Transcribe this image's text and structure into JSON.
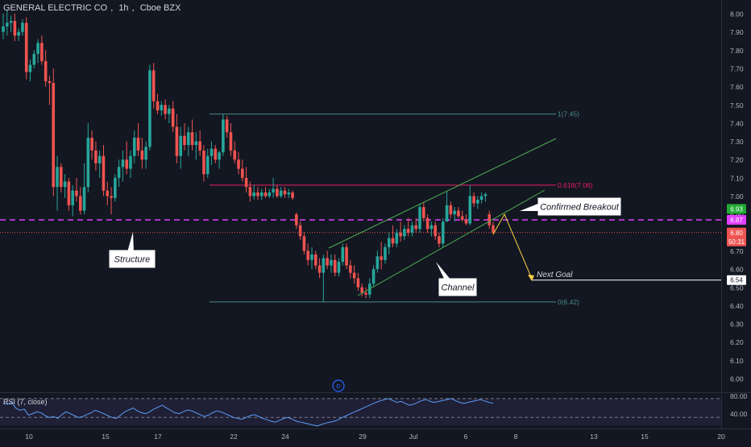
{
  "header": {
    "symbol": "GENERAL ELECTRIC CO",
    "interval": "1h",
    "exchange": "Cboe BZX"
  },
  "colors": {
    "background": "#131722",
    "up": "#26a69a",
    "down": "#ef5350",
    "channel": "#4caf50",
    "fib": "#4a8c85",
    "fib_618": "#e91e63",
    "breakout_line": "#e040fb",
    "goal_arrow": "#f5d142",
    "rsi_line": "#5b9cf6"
  },
  "price_axis": {
    "ticks": [
      "8.00",
      "7.90",
      "7.80",
      "7.70",
      "7.60",
      "7.50",
      "7.40",
      "7.30",
      "7.20",
      "7.10",
      "7.00",
      "6.90",
      "6.80",
      "6.70",
      "6.60",
      "6.50",
      "6.40",
      "6.30",
      "6.20",
      "6.10",
      "6.00"
    ],
    "badges": [
      {
        "text": "6.93",
        "color": "#22ab35"
      },
      {
        "text": "6.87",
        "color": "#e040fb"
      },
      {
        "text": "6.80",
        "color": "#ef5350"
      },
      {
        "text": "50:31",
        "color": "#ef5350"
      },
      {
        "text": "6.54",
        "color": "#ffffff"
      }
    ]
  },
  "time_axis": {
    "labels": [
      "10",
      "15",
      "17",
      "22",
      "24",
      "29",
      "Jul",
      "6",
      "8",
      "13",
      "15",
      "20"
    ]
  },
  "annotations": {
    "structure": "Structure",
    "channel": "Channel",
    "confirmed_breakout": "Confirmed Breakout",
    "next_goal": "Next Goal",
    "fib_1": "1(7.45)",
    "fib_618": "0.618(7.06)",
    "fib_0": "0(6.42)",
    "dividend_marker": "D"
  },
  "rsi": {
    "title": "RSI (7, close)",
    "ticks": [
      "80.00",
      "40.00"
    ]
  },
  "chart_data": {
    "type": "candlestick",
    "title": "GENERAL ELECTRIC CO, 1h, Cboe BZX",
    "ylim": [
      5.96,
      8.02
    ],
    "y_ticks": [
      8.0,
      7.9,
      7.8,
      7.7,
      7.6,
      7.5,
      7.4,
      7.3,
      7.2,
      7.1,
      7.0,
      6.9,
      6.8,
      6.7,
      6.6,
      6.5,
      6.4,
      6.3,
      6.2,
      6.1,
      6.0
    ],
    "candles": [
      {
        "o": 7.9,
        "h": 8.0,
        "l": 7.86,
        "c": 7.93
      },
      {
        "o": 7.93,
        "h": 8.02,
        "l": 7.88,
        "c": 7.95
      },
      {
        "o": 7.95,
        "h": 7.99,
        "l": 7.9,
        "c": 7.96
      },
      {
        "o": 7.96,
        "h": 8.0,
        "l": 7.85,
        "c": 7.88
      },
      {
        "o": 7.88,
        "h": 7.92,
        "l": 7.85,
        "c": 7.9
      },
      {
        "o": 7.9,
        "h": 7.97,
        "l": 7.88,
        "c": 7.95
      },
      {
        "o": 7.95,
        "h": 7.98,
        "l": 7.64,
        "c": 7.68
      },
      {
        "o": 7.68,
        "h": 7.75,
        "l": 7.63,
        "c": 7.72
      },
      {
        "o": 7.72,
        "h": 7.8,
        "l": 7.7,
        "c": 7.78
      },
      {
        "o": 7.78,
        "h": 7.86,
        "l": 7.73,
        "c": 7.84
      },
      {
        "o": 7.84,
        "h": 7.88,
        "l": 7.72,
        "c": 7.74
      },
      {
        "o": 7.74,
        "h": 7.8,
        "l": 7.6,
        "c": 7.63
      },
      {
        "o": 7.63,
        "h": 7.66,
        "l": 7.5,
        "c": 7.62
      },
      {
        "o": 7.62,
        "h": 7.7,
        "l": 7.0,
        "c": 7.05
      },
      {
        "o": 7.05,
        "h": 7.22,
        "l": 6.92,
        "c": 7.16
      },
      {
        "o": 7.16,
        "h": 7.18,
        "l": 7.02,
        "c": 7.05
      },
      {
        "o": 7.05,
        "h": 7.12,
        "l": 6.99,
        "c": 7.08
      },
      {
        "o": 7.08,
        "h": 7.1,
        "l": 6.92,
        "c": 6.95
      },
      {
        "o": 6.95,
        "h": 7.06,
        "l": 6.89,
        "c": 7.03
      },
      {
        "o": 7.03,
        "h": 7.1,
        "l": 6.97,
        "c": 7.0
      },
      {
        "o": 7.0,
        "h": 7.05,
        "l": 6.9,
        "c": 6.92
      },
      {
        "o": 6.92,
        "h": 7.18,
        "l": 6.9,
        "c": 7.05
      },
      {
        "o": 7.05,
        "h": 7.4,
        "l": 7.02,
        "c": 7.32
      },
      {
        "o": 7.32,
        "h": 7.36,
        "l": 7.2,
        "c": 7.25
      },
      {
        "o": 7.25,
        "h": 7.3,
        "l": 7.14,
        "c": 7.18
      },
      {
        "o": 7.18,
        "h": 7.25,
        "l": 7.1,
        "c": 7.22
      },
      {
        "o": 7.22,
        "h": 7.28,
        "l": 7.0,
        "c": 7.03
      },
      {
        "o": 7.03,
        "h": 7.08,
        "l": 6.95,
        "c": 7.0
      },
      {
        "o": 7.0,
        "h": 7.05,
        "l": 6.9,
        "c": 6.99
      },
      {
        "o": 6.99,
        "h": 7.12,
        "l": 6.97,
        "c": 7.1
      },
      {
        "o": 7.1,
        "h": 7.2,
        "l": 7.05,
        "c": 7.16
      },
      {
        "o": 7.16,
        "h": 7.25,
        "l": 7.08,
        "c": 7.2
      },
      {
        "o": 7.2,
        "h": 7.3,
        "l": 7.12,
        "c": 7.15
      },
      {
        "o": 7.15,
        "h": 7.25,
        "l": 7.1,
        "c": 7.22
      },
      {
        "o": 7.22,
        "h": 7.36,
        "l": 7.18,
        "c": 7.32
      },
      {
        "o": 7.32,
        "h": 7.4,
        "l": 7.22,
        "c": 7.25
      },
      {
        "o": 7.25,
        "h": 7.32,
        "l": 7.15,
        "c": 7.2
      },
      {
        "o": 7.2,
        "h": 7.3,
        "l": 7.15,
        "c": 7.27
      },
      {
        "o": 7.27,
        "h": 7.72,
        "l": 7.25,
        "c": 7.69
      },
      {
        "o": 7.69,
        "h": 7.73,
        "l": 7.48,
        "c": 7.52
      },
      {
        "o": 7.52,
        "h": 7.56,
        "l": 7.45,
        "c": 7.47
      },
      {
        "o": 7.47,
        "h": 7.52,
        "l": 7.44,
        "c": 7.5
      },
      {
        "o": 7.5,
        "h": 7.53,
        "l": 7.42,
        "c": 7.45
      },
      {
        "o": 7.45,
        "h": 7.5,
        "l": 7.4,
        "c": 7.48
      },
      {
        "o": 7.48,
        "h": 7.52,
        "l": 7.35,
        "c": 7.38
      },
      {
        "o": 7.38,
        "h": 7.45,
        "l": 7.18,
        "c": 7.22
      },
      {
        "o": 7.22,
        "h": 7.38,
        "l": 7.15,
        "c": 7.33
      },
      {
        "o": 7.33,
        "h": 7.4,
        "l": 7.25,
        "c": 7.28
      },
      {
        "o": 7.28,
        "h": 7.38,
        "l": 7.22,
        "c": 7.35
      },
      {
        "o": 7.35,
        "h": 7.42,
        "l": 7.25,
        "c": 7.28
      },
      {
        "o": 7.28,
        "h": 7.35,
        "l": 7.2,
        "c": 7.3
      },
      {
        "o": 7.3,
        "h": 7.36,
        "l": 7.22,
        "c": 7.25
      },
      {
        "o": 7.25,
        "h": 7.28,
        "l": 7.08,
        "c": 7.12
      },
      {
        "o": 7.12,
        "h": 7.26,
        "l": 7.1,
        "c": 7.22
      },
      {
        "o": 7.22,
        "h": 7.3,
        "l": 7.17,
        "c": 7.26
      },
      {
        "o": 7.26,
        "h": 7.28,
        "l": 7.18,
        "c": 7.2
      },
      {
        "o": 7.2,
        "h": 7.25,
        "l": 7.15,
        "c": 7.24
      },
      {
        "o": 7.24,
        "h": 7.45,
        "l": 7.22,
        "c": 7.42
      },
      {
        "o": 7.42,
        "h": 7.44,
        "l": 7.32,
        "c": 7.35
      },
      {
        "o": 7.35,
        "h": 7.4,
        "l": 7.22,
        "c": 7.25
      },
      {
        "o": 7.25,
        "h": 7.3,
        "l": 7.18,
        "c": 7.2
      },
      {
        "o": 7.2,
        "h": 7.24,
        "l": 7.12,
        "c": 7.15
      },
      {
        "o": 7.15,
        "h": 7.2,
        "l": 7.08,
        "c": 7.1
      },
      {
        "o": 7.1,
        "h": 7.16,
        "l": 7.02,
        "c": 7.05
      },
      {
        "o": 7.05,
        "h": 7.08,
        "l": 6.97,
        "c": 7.0
      },
      {
        "o": 7.0,
        "h": 7.06,
        "l": 6.98,
        "c": 7.02
      },
      {
        "o": 7.02,
        "h": 7.05,
        "l": 6.98,
        "c": 7.0
      },
      {
        "o": 7.0,
        "h": 7.04,
        "l": 6.98,
        "c": 7.02
      },
      {
        "o": 7.02,
        "h": 7.05,
        "l": 6.99,
        "c": 7.0
      },
      {
        "o": 7.0,
        "h": 7.04,
        "l": 6.99,
        "c": 7.02
      },
      {
        "o": 7.02,
        "h": 7.1,
        "l": 6.99,
        "c": 7.04
      },
      {
        "o": 7.04,
        "h": 7.06,
        "l": 6.99,
        "c": 7.0
      },
      {
        "o": 7.0,
        "h": 7.05,
        "l": 6.99,
        "c": 7.03
      },
      {
        "o": 7.03,
        "h": 7.05,
        "l": 6.99,
        "c": 7.01
      },
      {
        "o": 7.01,
        "h": 7.04,
        "l": 6.99,
        "c": 7.02
      },
      {
        "o": 7.02,
        "h": 7.03,
        "l": 6.98,
        "c": 6.99
      },
      {
        "o": 6.9,
        "h": 6.91,
        "l": 6.82,
        "c": 6.84
      },
      {
        "o": 6.84,
        "h": 6.86,
        "l": 6.76,
        "c": 6.78
      },
      {
        "o": 6.78,
        "h": 6.8,
        "l": 6.68,
        "c": 6.7
      },
      {
        "o": 6.7,
        "h": 6.74,
        "l": 6.62,
        "c": 6.65
      },
      {
        "o": 6.65,
        "h": 6.72,
        "l": 6.6,
        "c": 6.68
      },
      {
        "o": 6.68,
        "h": 6.7,
        "l": 6.6,
        "c": 6.62
      },
      {
        "o": 6.62,
        "h": 6.66,
        "l": 6.55,
        "c": 6.58
      },
      {
        "o": 6.58,
        "h": 6.68,
        "l": 6.42,
        "c": 6.66
      },
      {
        "o": 6.66,
        "h": 6.7,
        "l": 6.6,
        "c": 6.62
      },
      {
        "o": 6.62,
        "h": 6.68,
        "l": 6.58,
        "c": 6.65
      },
      {
        "o": 6.65,
        "h": 6.68,
        "l": 6.56,
        "c": 6.58
      },
      {
        "o": 6.58,
        "h": 6.66,
        "l": 6.56,
        "c": 6.64
      },
      {
        "o": 6.64,
        "h": 6.74,
        "l": 6.62,
        "c": 6.72
      },
      {
        "o": 6.72,
        "h": 6.74,
        "l": 6.6,
        "c": 6.62
      },
      {
        "o": 6.62,
        "h": 6.65,
        "l": 6.55,
        "c": 6.58
      },
      {
        "o": 6.58,
        "h": 6.62,
        "l": 6.52,
        "c": 6.55
      },
      {
        "o": 6.55,
        "h": 6.58,
        "l": 6.48,
        "c": 6.5
      },
      {
        "o": 6.5,
        "h": 6.52,
        "l": 6.45,
        "c": 6.47
      },
      {
        "o": 6.47,
        "h": 6.5,
        "l": 6.44,
        "c": 6.46
      },
      {
        "o": 6.46,
        "h": 6.55,
        "l": 6.44,
        "c": 6.52
      },
      {
        "o": 6.52,
        "h": 6.62,
        "l": 6.5,
        "c": 6.6
      },
      {
        "o": 6.6,
        "h": 6.7,
        "l": 6.58,
        "c": 6.67
      },
      {
        "o": 6.67,
        "h": 6.75,
        "l": 6.6,
        "c": 6.65
      },
      {
        "o": 6.65,
        "h": 6.74,
        "l": 6.63,
        "c": 6.72
      },
      {
        "o": 6.72,
        "h": 6.8,
        "l": 6.68,
        "c": 6.77
      },
      {
        "o": 6.77,
        "h": 6.84,
        "l": 6.72,
        "c": 6.74
      },
      {
        "o": 6.74,
        "h": 6.82,
        "l": 6.72,
        "c": 6.8
      },
      {
        "o": 6.8,
        "h": 6.86,
        "l": 6.75,
        "c": 6.78
      },
      {
        "o": 6.78,
        "h": 6.84,
        "l": 6.76,
        "c": 6.82
      },
      {
        "o": 6.82,
        "h": 6.88,
        "l": 6.78,
        "c": 6.8
      },
      {
        "o": 6.8,
        "h": 6.86,
        "l": 6.78,
        "c": 6.84
      },
      {
        "o": 6.84,
        "h": 6.88,
        "l": 6.8,
        "c": 6.82
      },
      {
        "o": 6.82,
        "h": 6.96,
        "l": 6.8,
        "c": 6.94
      },
      {
        "o": 6.94,
        "h": 6.97,
        "l": 6.86,
        "c": 6.88
      },
      {
        "o": 6.88,
        "h": 6.9,
        "l": 6.8,
        "c": 6.82
      },
      {
        "o": 6.82,
        "h": 6.86,
        "l": 6.78,
        "c": 6.84
      },
      {
        "o": 6.84,
        "h": 6.86,
        "l": 6.76,
        "c": 6.78
      },
      {
        "o": 6.78,
        "h": 6.8,
        "l": 6.72,
        "c": 6.74
      },
      {
        "o": 6.74,
        "h": 6.88,
        "l": 6.72,
        "c": 6.86
      },
      {
        "o": 6.86,
        "h": 7.03,
        "l": 6.86,
        "c": 6.95
      },
      {
        "o": 6.95,
        "h": 6.97,
        "l": 6.88,
        "c": 6.9
      },
      {
        "o": 6.9,
        "h": 6.94,
        "l": 6.86,
        "c": 6.92
      },
      {
        "o": 6.92,
        "h": 6.94,
        "l": 6.88,
        "c": 6.89
      },
      {
        "o": 6.89,
        "h": 6.92,
        "l": 6.86,
        "c": 6.87
      },
      {
        "o": 6.87,
        "h": 6.9,
        "l": 6.84,
        "c": 6.85
      },
      {
        "o": 6.85,
        "h": 7.06,
        "l": 6.84,
        "c": 7.0
      },
      {
        "o": 7.0,
        "h": 7.02,
        "l": 6.94,
        "c": 6.96
      },
      {
        "o": 6.96,
        "h": 7.0,
        "l": 6.93,
        "c": 6.98
      },
      {
        "o": 6.98,
        "h": 7.02,
        "l": 6.96,
        "c": 7.0
      },
      {
        "o": 7.0,
        "h": 7.02,
        "l": 6.97,
        "c": 7.01
      },
      {
        "o": 6.9,
        "h": 6.92,
        "l": 6.82,
        "c": 6.84
      },
      {
        "o": 6.84,
        "h": 6.86,
        "l": 6.79,
        "c": 6.8
      }
    ],
    "horizontal_levels": [
      {
        "name": "Fib 1",
        "value": 7.45
      },
      {
        "name": "Fib 0.618",
        "value": 7.06
      },
      {
        "name": "Fib 0",
        "value": 6.42
      },
      {
        "name": "Breakout level",
        "value": 6.87
      },
      {
        "name": "Current price",
        "value": 6.8
      },
      {
        "name": "Next goal",
        "value": 6.54
      }
    ],
    "rsi": {
      "levels": [
        80,
        40
      ],
      "values": [
        70,
        68,
        72,
        60,
        55,
        58,
        45,
        48,
        52,
        50,
        44,
        40,
        42,
        38,
        46,
        52,
        48,
        44,
        40,
        42,
        46,
        50,
        55,
        52,
        48,
        44,
        40,
        38,
        45,
        52,
        56,
        60,
        54,
        50,
        48,
        52,
        58,
        62,
        66,
        60,
        55,
        50,
        48,
        52,
        56,
        54,
        50,
        46,
        42,
        45,
        50,
        54,
        52,
        48,
        44,
        40,
        38,
        36,
        40,
        44,
        46,
        42,
        38,
        35,
        32,
        30,
        34,
        38,
        40,
        36,
        32,
        30,
        28,
        26,
        24,
        22,
        25,
        28,
        30,
        32,
        35,
        40,
        44,
        48,
        52,
        56,
        60,
        64,
        68,
        72,
        75,
        78,
        80,
        76,
        72,
        74,
        70,
        66,
        68,
        72,
        76,
        78,
        74,
        72,
        74,
        76,
        78,
        80,
        76,
        72,
        70,
        72,
        74,
        76,
        78,
        75,
        72,
        70
      ]
    }
  }
}
